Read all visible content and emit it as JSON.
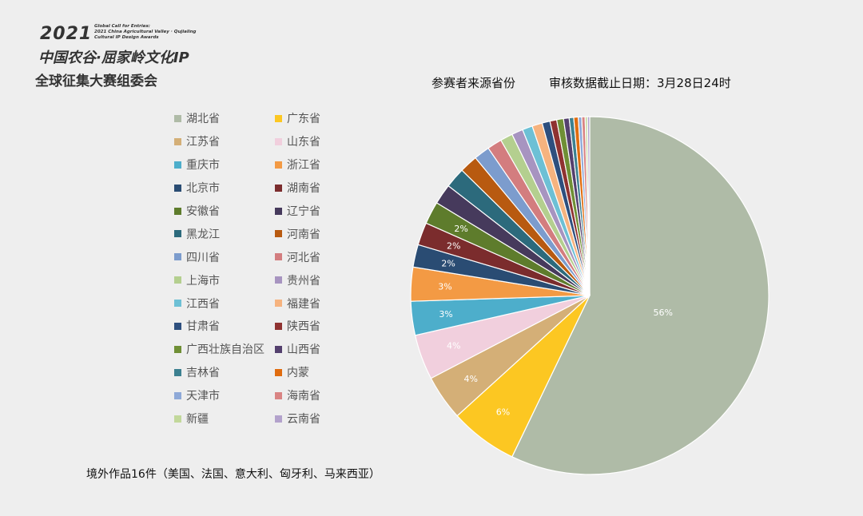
{
  "header": {
    "year": "2021",
    "english_lines": [
      "Global Call for Entries:",
      "2021 China Agricultural Valley · Qujialing",
      "Cultural IP Design Awards"
    ],
    "org_line1": "中国农谷·屈家岭文化IP",
    "org_line2": "全球征集大赛组委会"
  },
  "title": {
    "main": "参赛者来源省份",
    "deadline": "审核数据截止日期：3月28日24时"
  },
  "note": "境外作品16件（美国、法国、意大利、匈牙利、马来西亚）",
  "chart_data": {
    "type": "pie",
    "title": "参赛者来源省份",
    "start": "12 o'clock, clockwise",
    "slices": [
      {
        "label": "湖北省",
        "value": 56,
        "color": "#afbba7",
        "display": "56%"
      },
      {
        "label": "广东省",
        "value": 6,
        "color": "#fcc722",
        "display": "6%"
      },
      {
        "label": "江苏省",
        "value": 4,
        "color": "#d4af77",
        "display": "4%"
      },
      {
        "label": "山东省",
        "value": 4,
        "color": "#f1cfdd",
        "display": "4%"
      },
      {
        "label": "重庆市",
        "value": 3,
        "color": "#4daecb",
        "display": "3%"
      },
      {
        "label": "浙江省",
        "value": 3,
        "color": "#f39a44",
        "display": "3%"
      },
      {
        "label": "北京市",
        "value": 2,
        "color": "#2a4c73",
        "display": "2%"
      },
      {
        "label": "湖南省",
        "value": 2,
        "color": "#7b2c2d",
        "display": "2%"
      },
      {
        "label": "安徽省",
        "value": 2,
        "color": "#5e7c2c",
        "display": "2%"
      },
      {
        "label": "辽宁省",
        "value": 1.8,
        "color": "#463a5c",
        "display": ""
      },
      {
        "label": "黑龙江",
        "value": 1.8,
        "color": "#2c6a7c",
        "display": ""
      },
      {
        "label": "河南省",
        "value": 1.6,
        "color": "#b85a10",
        "display": ""
      },
      {
        "label": "四川省",
        "value": 1.4,
        "color": "#7c9ccd",
        "display": ""
      },
      {
        "label": "河北省",
        "value": 1.3,
        "color": "#d37d7f",
        "display": ""
      },
      {
        "label": "上海市",
        "value": 1.1,
        "color": "#b4cf8f",
        "display": ""
      },
      {
        "label": "贵州省",
        "value": 1.0,
        "color": "#a794c0",
        "display": ""
      },
      {
        "label": "江西省",
        "value": 0.9,
        "color": "#6dc0d5",
        "display": ""
      },
      {
        "label": "福建省",
        "value": 0.9,
        "color": "#f6b37f",
        "display": ""
      },
      {
        "label": "甘肃省",
        "value": 0.7,
        "color": "#2e4f7e",
        "display": ""
      },
      {
        "label": "陕西省",
        "value": 0.6,
        "color": "#8f3231",
        "display": ""
      },
      {
        "label": "广西壮族自治区",
        "value": 0.6,
        "color": "#6f8f35",
        "display": ""
      },
      {
        "label": "山西省",
        "value": 0.5,
        "color": "#54406e",
        "display": ""
      },
      {
        "label": "吉林省",
        "value": 0.4,
        "color": "#3c8090",
        "display": ""
      },
      {
        "label": "内蒙",
        "value": 0.4,
        "color": "#e06c0f",
        "display": ""
      },
      {
        "label": "天津市",
        "value": 0.3,
        "color": "#8ea9d8",
        "display": ""
      },
      {
        "label": "海南省",
        "value": 0.3,
        "color": "#d98483",
        "display": ""
      },
      {
        "label": "新疆",
        "value": 0.2,
        "color": "#c2d89b",
        "display": ""
      },
      {
        "label": "云南省",
        "value": 0.2,
        "color": "#b3a2cc",
        "display": ""
      }
    ],
    "legend_position": "left"
  }
}
